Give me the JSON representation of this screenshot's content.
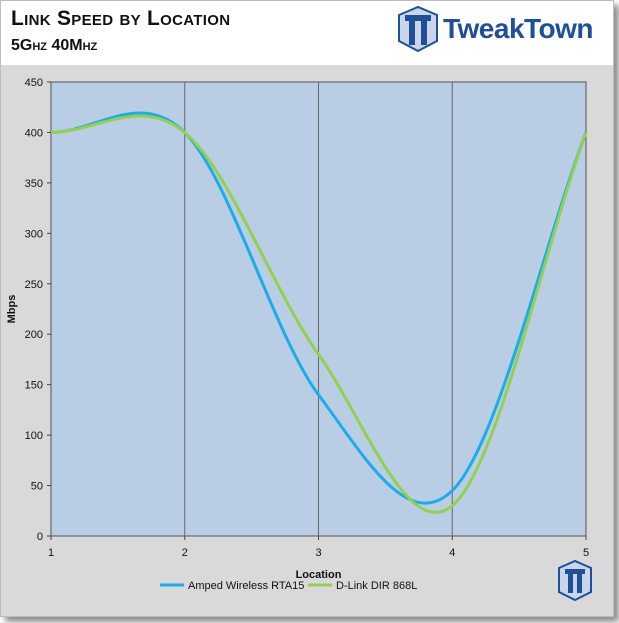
{
  "header": {
    "title": "Link Speed by Location",
    "subtitle": "5Ghz 40Mhz",
    "logo_text": "TweakTown",
    "logo_icon": "tweaktown-logo-icon"
  },
  "colors": {
    "plot_bg": "#b9cde5",
    "panel_bg": "#d9d9d9",
    "series_a": "#1cace8",
    "series_b": "#92d050",
    "logo_blue": "#1f4f96"
  },
  "chart_data": {
    "type": "line",
    "title": "Link Speed by Location",
    "subtitle": "5Ghz 40Mhz",
    "xlabel": "Location",
    "ylabel": "Mbps",
    "x": [
      1,
      2,
      3,
      4,
      5
    ],
    "xlim": [
      1,
      5
    ],
    "ylim": [
      0,
      450
    ],
    "yticks": [
      0,
      50,
      100,
      150,
      200,
      250,
      300,
      350,
      400,
      450
    ],
    "xticks": [
      1,
      2,
      3,
      4,
      5
    ],
    "grid": "vertical",
    "smooth": true,
    "legend_position": "bottom",
    "series": [
      {
        "name": "Amped Wireless RTA15",
        "values": [
          400,
          400,
          140,
          45,
          400
        ]
      },
      {
        "name": "D-Link DIR 868L",
        "values": [
          400,
          400,
          180,
          30,
          400
        ]
      }
    ]
  }
}
